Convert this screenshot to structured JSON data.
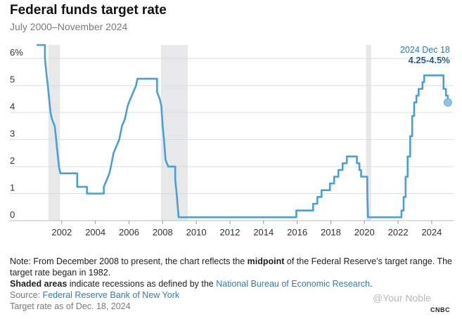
{
  "header": {
    "title": "Federal funds target rate",
    "subtitle": "July 2000–November 2024"
  },
  "chart_data": {
    "type": "line",
    "title": "Federal funds target rate",
    "subtitle": "July 2000–November 2024",
    "xlabel": "",
    "ylabel": "",
    "xlim": [
      2000.0,
      2025.3
    ],
    "ylim": [
      0,
      6.5
    ],
    "x_ticks": [
      {
        "value": 2002,
        "label": "2002"
      },
      {
        "value": 2004,
        "label": "2004"
      },
      {
        "value": 2006,
        "label": "2006"
      },
      {
        "value": 2008,
        "label": "2008"
      },
      {
        "value": 2010,
        "label": "2010"
      },
      {
        "value": 2012,
        "label": "2012"
      },
      {
        "value": 2014,
        "label": "2014"
      },
      {
        "value": 2016,
        "label": "2016"
      },
      {
        "value": 2018,
        "label": "2018"
      },
      {
        "value": 2020,
        "label": "2020"
      },
      {
        "value": 2022,
        "label": "2022"
      },
      {
        "value": 2024,
        "label": "2024"
      }
    ],
    "y_ticks": [
      {
        "value": 0,
        "label": "0"
      },
      {
        "value": 1,
        "label": "1"
      },
      {
        "value": 2,
        "label": "2"
      },
      {
        "value": 3,
        "label": "3"
      },
      {
        "value": 4,
        "label": "4"
      },
      {
        "value": 5,
        "label": "5"
      },
      {
        "value": 6,
        "label": "6%"
      }
    ],
    "recessions": [
      {
        "start": 2001.2,
        "end": 2001.9
      },
      {
        "start": 2007.9,
        "end": 2009.5
      },
      {
        "start": 2020.1,
        "end": 2020.4
      }
    ],
    "series": [
      {
        "name": "Federal funds target rate",
        "color": "#4a9fd8",
        "points": [
          [
            2000.55,
            6.5
          ],
          [
            2001.0,
            6.5
          ],
          [
            2001.0,
            6.0
          ],
          [
            2001.08,
            5.5
          ],
          [
            2001.17,
            5.0
          ],
          [
            2001.25,
            4.5
          ],
          [
            2001.33,
            4.0
          ],
          [
            2001.42,
            3.75
          ],
          [
            2001.58,
            3.5
          ],
          [
            2001.67,
            3.0
          ],
          [
            2001.75,
            2.5
          ],
          [
            2001.83,
            2.0
          ],
          [
            2001.92,
            1.75
          ],
          [
            2002.92,
            1.75
          ],
          [
            2002.92,
            1.25
          ],
          [
            2003.5,
            1.25
          ],
          [
            2003.5,
            1.0
          ],
          [
            2004.5,
            1.0
          ],
          [
            2004.5,
            1.25
          ],
          [
            2004.67,
            1.5
          ],
          [
            2004.83,
            1.75
          ],
          [
            2004.92,
            2.0
          ],
          [
            2005.08,
            2.5
          ],
          [
            2005.25,
            2.75
          ],
          [
            2005.42,
            3.0
          ],
          [
            2005.58,
            3.5
          ],
          [
            2005.75,
            3.75
          ],
          [
            2005.92,
            4.25
          ],
          [
            2006.08,
            4.5
          ],
          [
            2006.25,
            4.75
          ],
          [
            2006.42,
            5.0
          ],
          [
            2006.5,
            5.25
          ],
          [
            2007.67,
            5.25
          ],
          [
            2007.67,
            4.75
          ],
          [
            2007.83,
            4.5
          ],
          [
            2007.92,
            4.25
          ],
          [
            2008.0,
            3.5
          ],
          [
            2008.08,
            3.0
          ],
          [
            2008.17,
            2.25
          ],
          [
            2008.33,
            2.0
          ],
          [
            2008.75,
            2.0
          ],
          [
            2008.75,
            1.5
          ],
          [
            2008.83,
            1.0
          ],
          [
            2008.95,
            0.125
          ],
          [
            2015.95,
            0.125
          ],
          [
            2015.95,
            0.375
          ],
          [
            2016.95,
            0.375
          ],
          [
            2016.95,
            0.625
          ],
          [
            2017.2,
            0.625
          ],
          [
            2017.2,
            0.875
          ],
          [
            2017.45,
            0.875
          ],
          [
            2017.45,
            1.125
          ],
          [
            2017.95,
            1.125
          ],
          [
            2017.95,
            1.375
          ],
          [
            2018.2,
            1.375
          ],
          [
            2018.2,
            1.625
          ],
          [
            2018.45,
            1.625
          ],
          [
            2018.45,
            1.875
          ],
          [
            2018.7,
            1.875
          ],
          [
            2018.7,
            2.125
          ],
          [
            2018.95,
            2.125
          ],
          [
            2018.95,
            2.375
          ],
          [
            2019.55,
            2.375
          ],
          [
            2019.55,
            2.125
          ],
          [
            2019.7,
            2.125
          ],
          [
            2019.7,
            1.875
          ],
          [
            2019.8,
            1.875
          ],
          [
            2019.8,
            1.625
          ],
          [
            2020.17,
            1.625
          ],
          [
            2020.17,
            1.125
          ],
          [
            2020.21,
            0.125
          ],
          [
            2022.2,
            0.125
          ],
          [
            2022.2,
            0.375
          ],
          [
            2022.33,
            0.375
          ],
          [
            2022.33,
            0.875
          ],
          [
            2022.45,
            0.875
          ],
          [
            2022.45,
            1.625
          ],
          [
            2022.57,
            1.625
          ],
          [
            2022.57,
            2.375
          ],
          [
            2022.72,
            2.375
          ],
          [
            2022.72,
            3.125
          ],
          [
            2022.84,
            3.125
          ],
          [
            2022.84,
            3.875
          ],
          [
            2022.96,
            3.875
          ],
          [
            2022.96,
            4.375
          ],
          [
            2023.09,
            4.375
          ],
          [
            2023.09,
            4.625
          ],
          [
            2023.22,
            4.625
          ],
          [
            2023.22,
            4.875
          ],
          [
            2023.45,
            4.875
          ],
          [
            2023.45,
            5.125
          ],
          [
            2023.55,
            5.125
          ],
          [
            2023.55,
            5.375
          ],
          [
            2024.7,
            5.375
          ],
          [
            2024.7,
            4.875
          ],
          [
            2024.85,
            4.875
          ],
          [
            2024.85,
            4.625
          ],
          [
            2024.96,
            4.625
          ],
          [
            2024.96,
            4.375
          ]
        ]
      }
    ],
    "annotation": {
      "date": "2024 Dec 18",
      "value": "4.25-4.5%",
      "x": 2024.96,
      "y": 4.375
    }
  },
  "notes": {
    "line1_pre": "Note: From December 2008 to present, the chart reflects the ",
    "line1_bold": "midpoint",
    "line1_post": " of the Federal Reserve’s target range. The target rate began in 1982.",
    "line2_bold": "Shaded areas",
    "line2_mid": " indicate recessions as defined by the ",
    "line2_link": "National Bureau of Economic Research",
    "line2_end": ".",
    "source_label": "Source: ",
    "source_link": "Federal Reserve Bank of New York",
    "asof": "Target rate as of Dec. 18, 2024"
  },
  "branding": {
    "watermark": "@Your Noble",
    "logo": "CNBC"
  }
}
